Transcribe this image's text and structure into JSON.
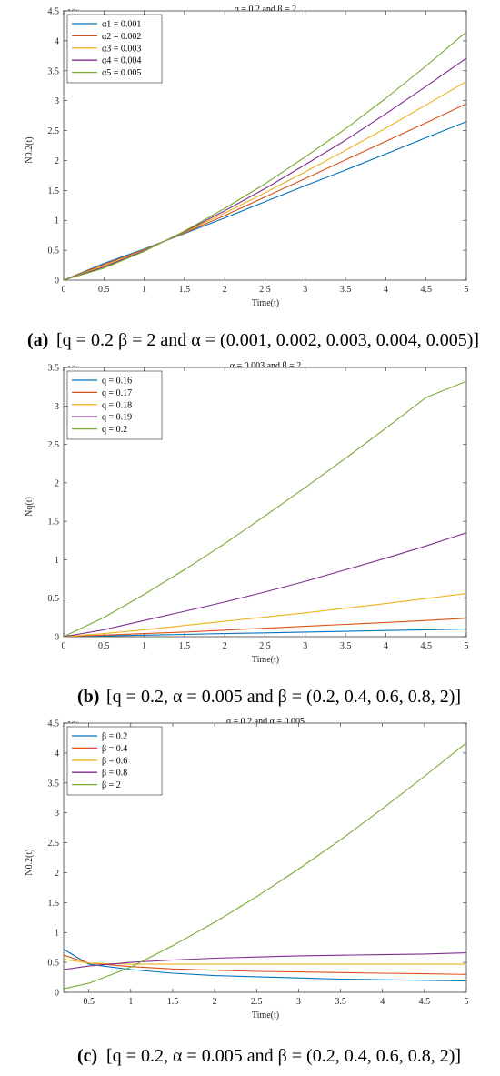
{
  "chart_data": [
    {
      "type": "line",
      "title": "q = 0.2 and β = 2",
      "xlabel": "Time(t)",
      "ylabel": "N0.2(t)",
      "exponent": "×10⁶",
      "xlim": [
        0,
        5
      ],
      "ylim": [
        0,
        4.5
      ],
      "xticks": [
        0,
        0.5,
        1,
        1.5,
        2,
        2.5,
        3,
        3.5,
        4,
        4.5,
        5
      ],
      "yticks": [
        0,
        0.5,
        1,
        1.5,
        2,
        2.5,
        3,
        3.5,
        4,
        4.5
      ],
      "legend": "top-left",
      "x": [
        0,
        0.5,
        1,
        1.5,
        2,
        2.5,
        3,
        3.5,
        4,
        4.5,
        5
      ],
      "series": [
        {
          "name": "α1 = 0.001",
          "color": "#0072BD",
          "values": [
            0,
            0.28,
            0.52,
            0.78,
            1.04,
            1.31,
            1.58,
            1.84,
            2.11,
            2.38,
            2.65
          ]
        },
        {
          "name": "α2 = 0.002",
          "color": "#D95319",
          "values": [
            0,
            0.26,
            0.51,
            0.79,
            1.08,
            1.39,
            1.7,
            2.01,
            2.32,
            2.63,
            2.95
          ]
        },
        {
          "name": "α3 = 0.003",
          "color": "#EDB120",
          "values": [
            0,
            0.24,
            0.5,
            0.8,
            1.12,
            1.46,
            1.81,
            2.17,
            2.54,
            2.93,
            3.32
          ]
        },
        {
          "name": "α4 = 0.004",
          "color": "#7E2F8E",
          "values": [
            0,
            0.22,
            0.49,
            0.81,
            1.16,
            1.53,
            1.93,
            2.34,
            2.78,
            3.24,
            3.71
          ]
        },
        {
          "name": "α5 = 0.005",
          "color": "#77AC30",
          "values": [
            0,
            0.2,
            0.48,
            0.82,
            1.2,
            1.61,
            2.06,
            2.53,
            3.04,
            3.58,
            4.15
          ]
        }
      ],
      "caption": {
        "letter": "(a)",
        "text": "[q = 0.2 β = 2 and α = (0.001, 0.002, 0.003, 0.004, 0.005)]"
      }
    },
    {
      "type": "line",
      "title": "α = 0.003 and β = 2",
      "xlabel": "Time(t)",
      "ylabel": "Nq(t)",
      "exponent": "×10⁶",
      "xlim": [
        0,
        5
      ],
      "ylim": [
        0,
        3.5
      ],
      "xticks": [
        0,
        0.5,
        1,
        1.5,
        2,
        2.5,
        3,
        3.5,
        4,
        4.5,
        5
      ],
      "yticks": [
        0,
        0.5,
        1,
        1.5,
        2,
        2.5,
        3,
        3.5
      ],
      "legend": "top-left",
      "x": [
        0,
        0.5,
        1,
        1.5,
        2,
        2.5,
        3,
        3.5,
        4,
        4.5,
        5
      ],
      "series": [
        {
          "name": "q = 0.16",
          "color": "#0072BD",
          "values": [
            0,
            0.01,
            0.02,
            0.03,
            0.04,
            0.05,
            0.06,
            0.07,
            0.08,
            0.09,
            0.1
          ]
        },
        {
          "name": "q = 0.17",
          "color": "#D95319",
          "values": [
            0,
            0.02,
            0.04,
            0.06,
            0.085,
            0.11,
            0.135,
            0.16,
            0.185,
            0.21,
            0.24
          ]
        },
        {
          "name": "q = 0.18",
          "color": "#EDB120",
          "values": [
            0,
            0.04,
            0.09,
            0.145,
            0.2,
            0.255,
            0.31,
            0.37,
            0.43,
            0.495,
            0.56
          ]
        },
        {
          "name": "q = 0.19",
          "color": "#7E2F8E",
          "values": [
            0,
            0.09,
            0.21,
            0.33,
            0.45,
            0.58,
            0.72,
            0.87,
            1.02,
            1.18,
            1.35
          ]
        },
        {
          "name": "q = 0.2",
          "color": "#77AC30",
          "values": [
            0,
            0.25,
            0.55,
            0.87,
            1.21,
            1.57,
            1.94,
            2.32,
            2.71,
            3.11,
            3.32
          ]
        }
      ],
      "caption": {
        "letter": "(b)",
        "text": "[q = 0.2,  α = 0.005 and β = (0.2, 0.4, 0.6, 0.8, 2)]"
      }
    },
    {
      "type": "line",
      "title": "q = 0.2 and α = 0.005",
      "xlabel": "Time(t)",
      "ylabel": "N0.2(t)",
      "exponent": "×10⁶",
      "xlim": [
        0.2,
        5
      ],
      "ylim": [
        0,
        4.5
      ],
      "xticks": [
        0.5,
        1,
        1.5,
        2,
        2.5,
        3,
        3.5,
        4,
        4.5,
        5
      ],
      "yticks": [
        0,
        0.5,
        1,
        1.5,
        2,
        2.5,
        3,
        3.5,
        4,
        4.5
      ],
      "legend": "top-left",
      "x": [
        0.2,
        0.5,
        1,
        1.5,
        2,
        2.5,
        3,
        3.5,
        4,
        4.5,
        5
      ],
      "series": [
        {
          "name": "β = 0.2",
          "color": "#0072BD",
          "values": [
            0.72,
            0.47,
            0.38,
            0.32,
            0.28,
            0.26,
            0.24,
            0.22,
            0.21,
            0.2,
            0.19
          ]
        },
        {
          "name": "β = 0.4",
          "color": "#D95319",
          "values": [
            0.62,
            0.49,
            0.43,
            0.39,
            0.37,
            0.35,
            0.34,
            0.33,
            0.32,
            0.31,
            0.3
          ]
        },
        {
          "name": "β = 0.6",
          "color": "#EDB120",
          "values": [
            0.55,
            0.49,
            0.47,
            0.47,
            0.47,
            0.47,
            0.47,
            0.47,
            0.47,
            0.47,
            0.47
          ]
        },
        {
          "name": "β = 0.8",
          "color": "#7E2F8E",
          "values": [
            0.38,
            0.44,
            0.5,
            0.54,
            0.57,
            0.59,
            0.61,
            0.62,
            0.63,
            0.64,
            0.66
          ]
        },
        {
          "name": "β = 2",
          "color": "#77AC30",
          "values": [
            0.06,
            0.15,
            0.42,
            0.78,
            1.17,
            1.6,
            2.06,
            2.55,
            3.07,
            3.61,
            4.17
          ]
        }
      ],
      "caption": {
        "letter": "(c)",
        "text": "[q = 0.2,  α = 0.005 and β = (0.2, 0.4, 0.6, 0.8, 2)]"
      }
    }
  ]
}
